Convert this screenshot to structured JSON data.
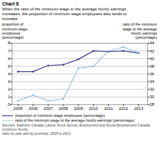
{
  "chart_data": {
    "type": "line",
    "title": "Chart 8",
    "subtitle": "When the ratio of the minimum wage to the average hourly earnings\nincreases, the proportion of minimum wage employees also tends to\nincrease",
    "ylabel": "proportion of\nminimum wage\nemployees\n(percentage)",
    "y2label": "ratio of the minimum\nwage to the average\nhourly earnings\n(percentage)",
    "caption": "Sources:  Statistics Canada, Labour Force Survey; Employment and Social Development Canada (minimum hourly\nrates by year and by province), 2005 to 2013.",
    "x": [
      2005,
      2006,
      2007,
      2008,
      2009,
      2010,
      2011,
      2012,
      2013
    ],
    "xlim": [
      2004.6,
      2013.6
    ],
    "xticks": [
      2005,
      2006,
      2007,
      2008,
      2009,
      2010,
      2011,
      2012,
      2013
    ],
    "ylim": [
      0,
      8
    ],
    "yticks": [
      0,
      1,
      2,
      3,
      4,
      5,
      6,
      7,
      8
    ],
    "y2lim": [
      28,
      44
    ],
    "y2ticks": [
      28,
      30,
      32,
      34,
      36,
      38,
      40,
      42,
      44
    ],
    "grid": true,
    "legend": "bottom",
    "series": [
      {
        "name": "proportion of minimum wage employees (percentage)",
        "color": "#3c3c8c",
        "values": [
          4.3,
          4.3,
          5.1,
          5.2,
          5.9,
          7.0,
          6.9,
          7.0,
          6.7
        ],
        "line_style": "solid",
        "marker": "dot"
      },
      {
        "name": "ratio of the minimum wage to the average hourly earnings (percentage)",
        "color": "#88bbdd",
        "values": [
          29.0,
          30.5,
          29.0,
          29.5,
          37.5,
          38.0,
          42.0,
          43.0,
          41.5
        ],
        "line_style": "dashed",
        "marker": "dot",
        "axis": "y2"
      }
    ]
  }
}
